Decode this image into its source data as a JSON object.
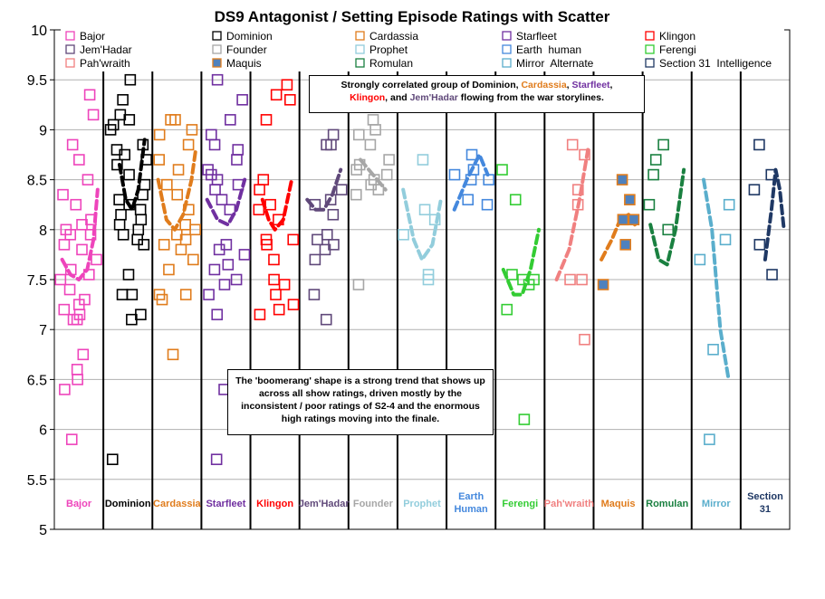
{
  "chart_data": {
    "type": "scatter",
    "title": "DS9 Antagonist  / Setting Episode  Ratings with Scatter",
    "ylim": [
      5,
      10
    ],
    "yticks": [
      "5",
      "5.5",
      "6",
      "6.5",
      "7",
      "7.5",
      "8",
      "8.5",
      "9",
      "9.5",
      "10"
    ],
    "grid": "horizontal",
    "legend_position": "top",
    "series": [
      {
        "name": "Bajor",
        "label": "Bajor",
        "color": "#ee44bb",
        "filled": false,
        "points": [
          8.5,
          8.35,
          8.25,
          8.1,
          8.0,
          7.95,
          7.85,
          7.7,
          7.6,
          7.55,
          7.5,
          7.4,
          7.3,
          7.25,
          7.2,
          7.1,
          6.75,
          6.6,
          6.5,
          6.4,
          9.35,
          9.15,
          8.85,
          8.7,
          8.05,
          7.95,
          7.8,
          7.15,
          7.1,
          5.9
        ],
        "trend": [
          [
            0.1,
            7.7
          ],
          [
            0.3,
            7.55
          ],
          [
            0.5,
            7.5
          ],
          [
            0.7,
            7.6
          ],
          [
            0.85,
            7.9
          ],
          [
            0.95,
            8.4
          ]
        ]
      },
      {
        "name": "Dominion",
        "label": "Dominion",
        "color": "#000000",
        "filled": false,
        "points": [
          9.5,
          9.3,
          9.15,
          9.1,
          9.05,
          9.0,
          8.85,
          8.8,
          8.75,
          8.7,
          8.65,
          8.55,
          8.45,
          8.35,
          8.3,
          8.25,
          8.2,
          8.15,
          8.1,
          8.05,
          8.0,
          7.95,
          7.9,
          7.85,
          7.55,
          7.35,
          7.35,
          7.15,
          7.1,
          5.7
        ],
        "trend": [
          [
            0.3,
            8.65
          ],
          [
            0.45,
            8.3
          ],
          [
            0.6,
            8.2
          ],
          [
            0.75,
            8.4
          ],
          [
            0.9,
            8.9
          ]
        ]
      },
      {
        "name": "Cardassia",
        "label": "Cardassia",
        "color": "#e07c1c",
        "filled": false,
        "points": [
          9.1,
          9.1,
          9.0,
          8.95,
          8.85,
          8.7,
          8.6,
          8.45,
          8.35,
          8.2,
          8.05,
          8.0,
          7.95,
          7.9,
          7.85,
          7.8,
          7.7,
          7.6,
          7.35,
          7.35,
          7.3,
          6.75
        ],
        "trend": [
          [
            0.05,
            8.5
          ],
          [
            0.25,
            8.1
          ],
          [
            0.45,
            8.0
          ],
          [
            0.65,
            8.15
          ],
          [
            0.85,
            8.5
          ],
          [
            0.95,
            8.8
          ]
        ]
      },
      {
        "name": "Starfleet",
        "label": "Starfleet",
        "color": "#7030a0",
        "filled": false,
        "points": [
          9.5,
          9.3,
          9.1,
          8.95,
          8.85,
          8.8,
          8.7,
          8.6,
          8.55,
          8.5,
          8.45,
          8.4,
          8.3,
          8.2,
          7.85,
          7.8,
          7.75,
          7.65,
          7.6,
          7.5,
          7.45,
          7.35,
          7.15,
          6.4,
          5.7
        ],
        "trend": [
          [
            0.05,
            8.3
          ],
          [
            0.3,
            8.1
          ],
          [
            0.55,
            8.05
          ],
          [
            0.75,
            8.2
          ],
          [
            0.95,
            8.5
          ]
        ]
      },
      {
        "name": "Klingon",
        "label": "Klingon",
        "color": "#ff0000",
        "filled": false,
        "points": [
          9.45,
          9.35,
          9.3,
          9.1,
          8.5,
          8.4,
          8.25,
          8.2,
          8.1,
          7.9,
          7.9,
          7.85,
          7.7,
          7.5,
          7.45,
          7.35,
          7.25,
          7.2,
          7.15
        ],
        "trend": [
          [
            0.2,
            8.3
          ],
          [
            0.35,
            8.1
          ],
          [
            0.5,
            8.0
          ],
          [
            0.7,
            8.1
          ],
          [
            0.9,
            8.5
          ]
        ]
      },
      {
        "name": "Jem'Hadar",
        "label": "Jem'Hadar",
        "color": "#60497a",
        "filled": false,
        "points": [
          8.95,
          8.85,
          8.85,
          8.4,
          8.3,
          8.25,
          8.15,
          7.95,
          7.9,
          7.85,
          7.8,
          7.7,
          7.35,
          7.1
        ],
        "trend": [
          [
            0.1,
            8.3
          ],
          [
            0.3,
            8.2
          ],
          [
            0.5,
            8.2
          ],
          [
            0.7,
            8.35
          ],
          [
            0.9,
            8.6
          ]
        ]
      },
      {
        "name": "Founder",
        "label": "Founder",
        "color": "#a6a6a6",
        "filled": false,
        "points": [
          9.1,
          9.0,
          8.95,
          8.85,
          8.7,
          8.65,
          8.6,
          8.55,
          8.5,
          8.45,
          8.4,
          8.35,
          7.45
        ],
        "trend": [
          [
            0.2,
            8.7
          ],
          [
            0.5,
            8.55
          ],
          [
            0.8,
            8.4
          ]
        ]
      },
      {
        "name": "Prophet",
        "label": "Prophet",
        "color": "#92cddc",
        "filled": false,
        "points": [
          8.7,
          8.2,
          8.1,
          7.95,
          7.55,
          7.5
        ],
        "trend": [
          [
            0.05,
            8.4
          ],
          [
            0.3,
            7.9
          ],
          [
            0.5,
            7.7
          ],
          [
            0.75,
            7.85
          ],
          [
            0.95,
            8.3
          ]
        ]
      },
      {
        "name": "Earth  human",
        "label": "Earth\nHuman",
        "color": "#4488dd",
        "filled": false,
        "points": [
          8.75,
          8.6,
          8.55,
          8.5,
          8.5,
          8.3,
          8.25
        ],
        "trend": [
          [
            0.1,
            8.2
          ],
          [
            0.4,
            8.5
          ],
          [
            0.7,
            8.75
          ],
          [
            0.9,
            8.55
          ]
        ]
      },
      {
        "name": "Ferengi",
        "label": "Ferengi",
        "color": "#33cc33",
        "filled": false,
        "points": [
          8.6,
          8.3,
          7.55,
          7.5,
          7.5,
          7.45,
          7.2,
          6.1
        ],
        "trend": [
          [
            0.1,
            7.6
          ],
          [
            0.35,
            7.35
          ],
          [
            0.55,
            7.35
          ],
          [
            0.75,
            7.6
          ],
          [
            0.95,
            8.0
          ]
        ]
      },
      {
        "name": "Pah'wraith",
        "label": "Pah'wraith",
        "color": "#f08080",
        "filled": false,
        "points": [
          8.85,
          8.75,
          8.4,
          8.25,
          7.5,
          7.5,
          6.9
        ],
        "trend": [
          [
            0.2,
            7.5
          ],
          [
            0.5,
            7.8
          ],
          [
            0.75,
            8.3
          ],
          [
            0.95,
            8.8
          ]
        ]
      },
      {
        "name": "Maquis",
        "label": "Maquis",
        "color": "#e07c1c",
        "fill": "#4f81bd",
        "filled": true,
        "points": [
          8.5,
          8.3,
          8.1,
          8.1,
          8.1,
          7.85,
          7.45
        ],
        "trend": [
          [
            0.1,
            7.7
          ],
          [
            0.35,
            7.9
          ],
          [
            0.55,
            8.1
          ],
          [
            0.75,
            8.15
          ],
          [
            0.9,
            8.05
          ]
        ]
      },
      {
        "name": "Romulan",
        "label": "Romulan",
        "color": "#1a8040",
        "filled": false,
        "points": [
          8.85,
          8.7,
          8.55,
          8.25,
          8.0
        ],
        "trend": [
          [
            0.1,
            8.05
          ],
          [
            0.3,
            7.7
          ],
          [
            0.5,
            7.65
          ],
          [
            0.7,
            8.0
          ],
          [
            0.9,
            8.6
          ]
        ]
      },
      {
        "name": "Mirror  Alternate",
        "label": "Mirror",
        "color": "#5aaecc",
        "filled": false,
        "points": [
          8.25,
          7.9,
          7.7,
          6.8,
          5.9
        ],
        "trend": [
          [
            0.2,
            8.5
          ],
          [
            0.4,
            8.0
          ],
          [
            0.6,
            7.0
          ],
          [
            0.8,
            6.5
          ]
        ]
      },
      {
        "name": "Section 31  Intelligence",
        "label": "Section\n31",
        "color": "#1f3864",
        "filled": false,
        "points": [
          8.85,
          8.55,
          8.4,
          7.85,
          7.55
        ],
        "trend": [
          [
            0.5,
            7.7
          ],
          [
            0.65,
            8.2
          ],
          [
            0.75,
            8.6
          ],
          [
            0.85,
            8.4
          ],
          [
            0.95,
            8.0
          ]
        ]
      }
    ],
    "annotations": [
      {
        "segments": [
          {
            "text": "Strongly correlated group of Dominion, ",
            "color": "#000000"
          },
          {
            "text": "Cardassia",
            "color": "#e07c1c"
          },
          {
            "text": ", ",
            "color": "#000000"
          },
          {
            "text": "Starfleet",
            "color": "#7030a0"
          },
          {
            "text": ",",
            "color": "#000000"
          },
          {
            "text": "\n",
            "color": "#000000"
          },
          {
            "text": "Klingon",
            "color": "#ff0000"
          },
          {
            "text": ", and ",
            "color": "#000000"
          },
          {
            "text": "Jem'Hadar",
            "color": "#60497a"
          },
          {
            "text": " flowing from the war storylines.",
            "color": "#000000"
          }
        ]
      },
      {
        "segments": [
          {
            "text": "The 'boomerang' shape is a strong trend that shows up across all show ratings, driven mostly by the inconsistent / poor ratings of S2-4 and the enormous high ratings moving into the finale.",
            "color": "#000000"
          }
        ]
      }
    ]
  }
}
